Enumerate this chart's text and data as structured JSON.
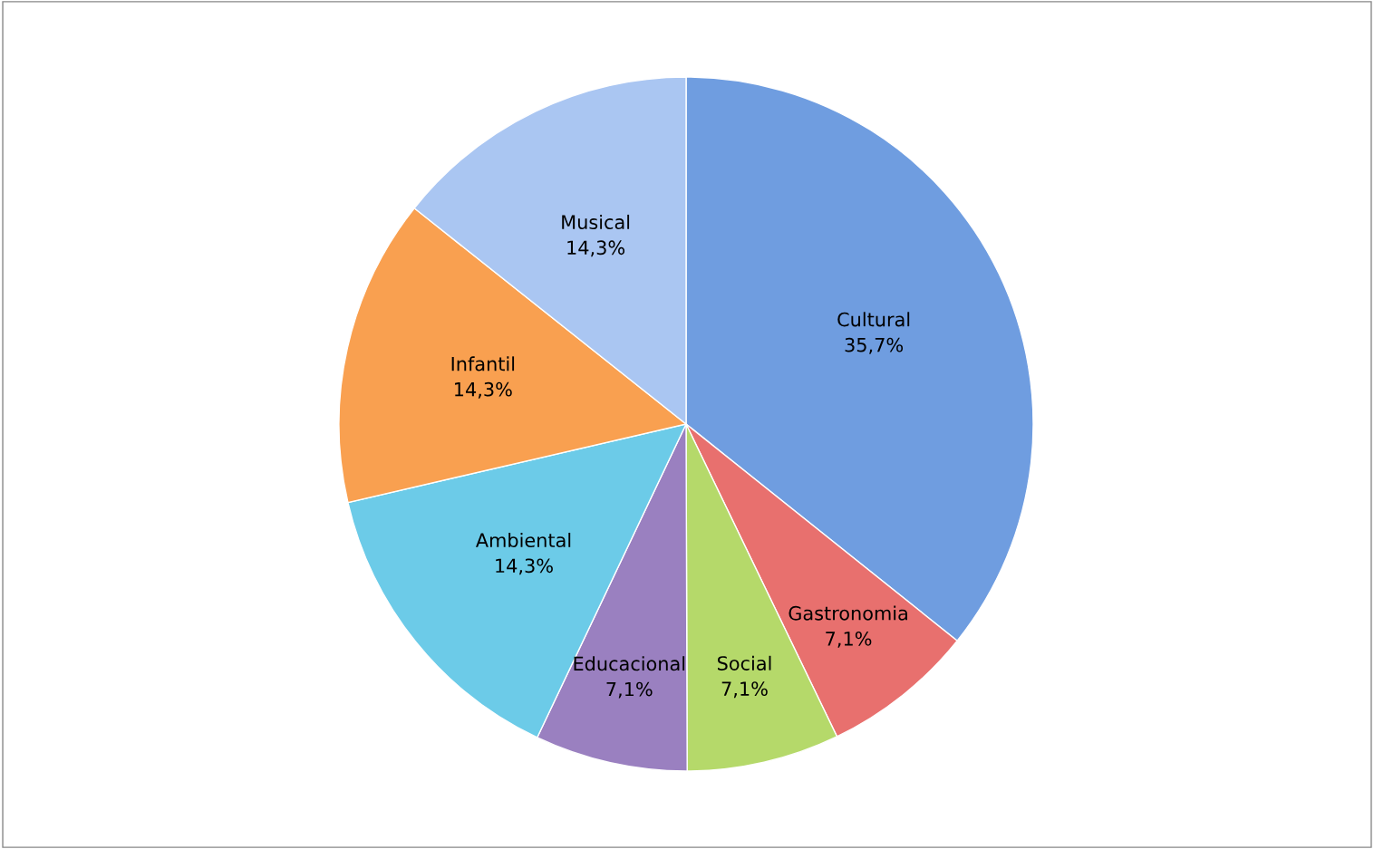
{
  "chart_data": {
    "type": "pie",
    "categories": [
      "Cultural",
      "Gastronomia",
      "Social",
      "Educacional",
      "Ambiental",
      "Infantil",
      "Musical"
    ],
    "values": [
      35.7,
      7.1,
      7.1,
      7.1,
      14.3,
      14.3,
      14.3
    ],
    "value_labels": [
      "35,7%",
      "7,1%",
      "7,1%",
      "7,1%",
      "14,3%",
      "14,3%",
      "14,3%"
    ],
    "colors": [
      "#6f9de0",
      "#e8706e",
      "#b5d96a",
      "#9a80c0",
      "#6ccbe8",
      "#f9a050",
      "#aac6f2"
    ],
    "legend": false
  }
}
